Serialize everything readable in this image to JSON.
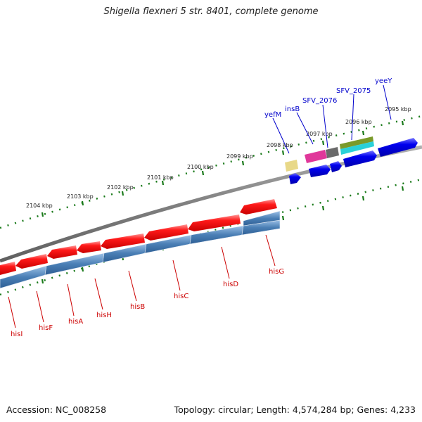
{
  "title": "Shigella flexneri 5 str. 8401, complete genome",
  "footer": {
    "accession": "Accession: NC_008258",
    "stats": "Topology: circular; Length: 4,574,284 bp; Genes: 4,233"
  },
  "colors": {
    "backbone": "#808080",
    "tick": "#1a7a1a",
    "cds_forward": "#ff0000",
    "cds_reverse": "#0000ee",
    "operon": "#4a7fb5",
    "label_red": "#cc0000",
    "label_blue": "#0000cc"
  },
  "scale_labels": [
    "2095 kbp",
    "2096 kbp",
    "2097 kbp",
    "2098 kbp",
    "2099 kbp",
    "2100 kbp",
    "2101 kbp",
    "2102 kbp",
    "2103 kbp",
    "2104 kbp"
  ],
  "gene_labels_bottom": [
    "hisG",
    "hisD",
    "hisC",
    "hisB",
    "hisH",
    "hisA",
    "hisF",
    "hisI"
  ],
  "gene_labels_top": [
    "yeeY",
    "SFV_2075",
    "SFV_2076",
    "insB",
    "yefM"
  ]
}
